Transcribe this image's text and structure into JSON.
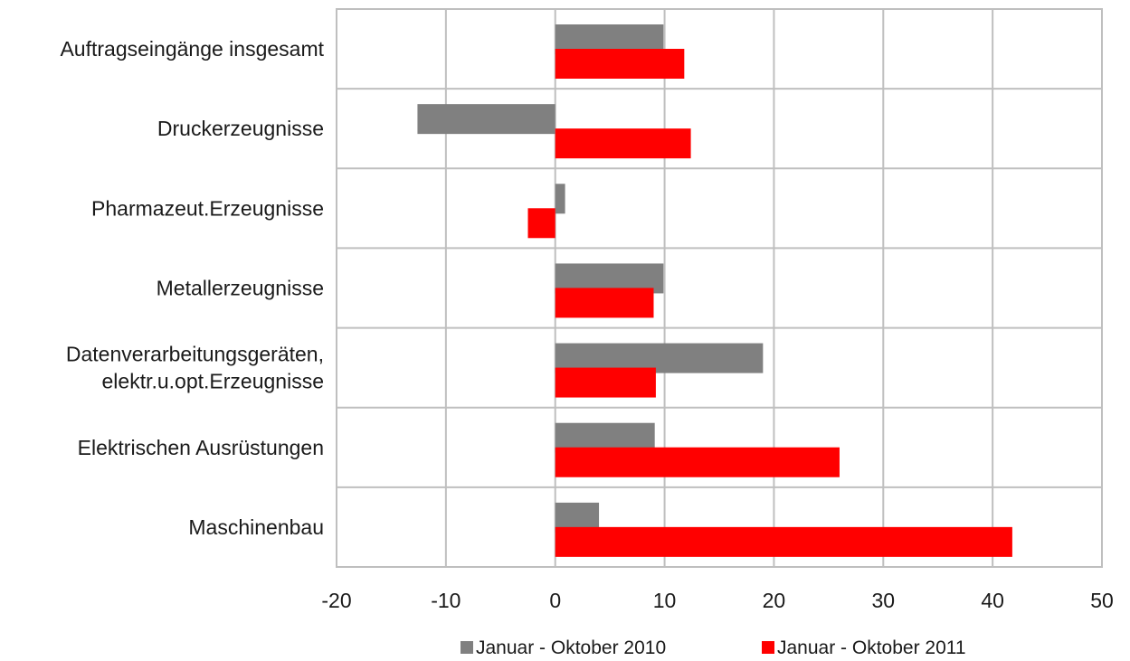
{
  "chart_data": {
    "type": "bar",
    "orientation": "horizontal",
    "categories": [
      [
        "Auftragseingänge insgesamt"
      ],
      [
        "Druckerzeugnisse"
      ],
      [
        "Pharmazeut.Erzeugnisse"
      ],
      [
        "Metallerzeugnisse"
      ],
      [
        "Datenverarbeitungsgeräten,",
        "elektr.u.opt.Erzeugnisse"
      ],
      [
        "Elektrischen Ausrüstungen"
      ],
      [
        "Maschinenbau"
      ]
    ],
    "series": [
      {
        "name": "Januar - Oktober 2010",
        "color": "#808080",
        "values": [
          9.9,
          -12.6,
          0.9,
          9.9,
          19.0,
          9.1,
          4.0
        ]
      },
      {
        "name": "Januar - Oktober 2011",
        "color": "#ff0000",
        "values": [
          11.8,
          12.4,
          -2.5,
          9.0,
          9.2,
          26.0,
          41.8
        ]
      }
    ],
    "xlim": [
      -20,
      50
    ],
    "xticks": [
      -20,
      -10,
      0,
      10,
      20,
      30,
      40,
      50
    ],
    "grid": true,
    "legend_position": "bottom"
  }
}
